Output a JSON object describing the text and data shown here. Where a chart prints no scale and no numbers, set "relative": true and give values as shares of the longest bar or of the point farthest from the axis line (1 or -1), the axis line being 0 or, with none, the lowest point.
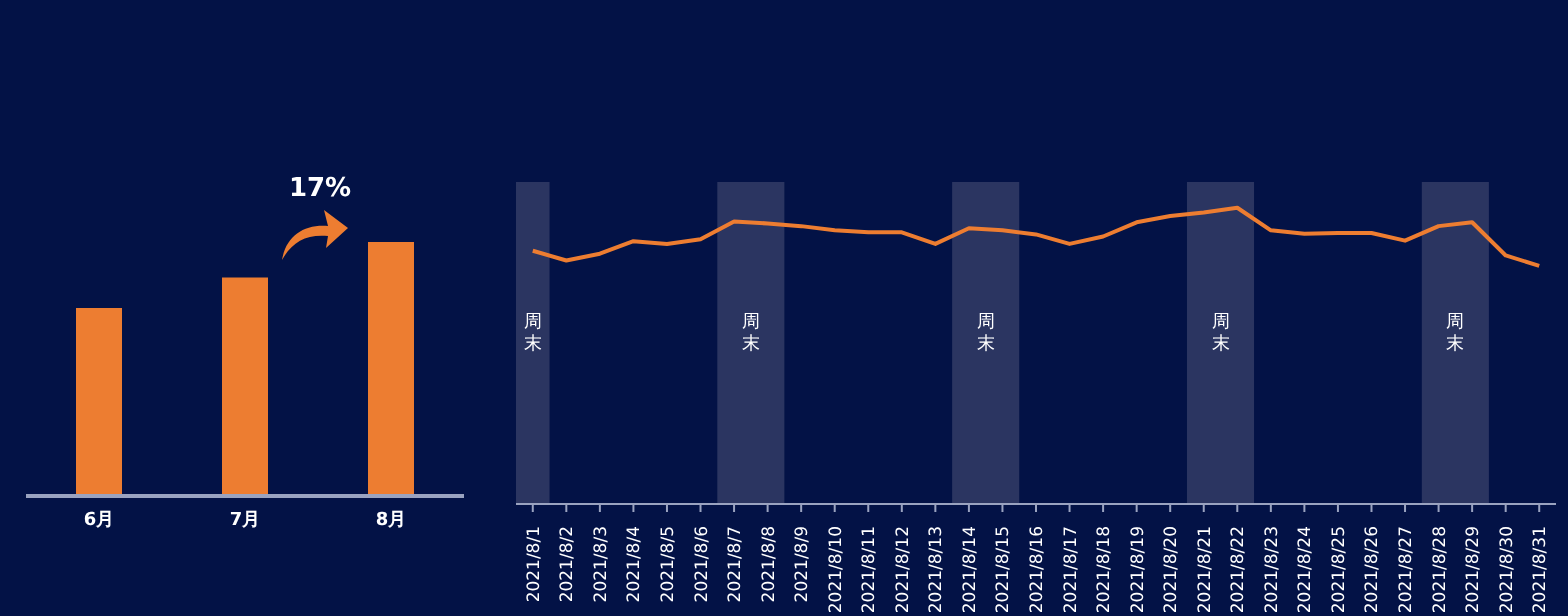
{
  "chart_data": [
    {
      "type": "bar",
      "categories": [
        "6月",
        "7月",
        "8月"
      ],
      "values": [
        0.74,
        0.86,
        1
      ],
      "color": "#ed7d31",
      "relative": true,
      "annotations": [
        "17%"
      ]
    },
    {
      "type": "line",
      "categories": [
        "2021/8/1",
        "2021/8/2",
        "2021/8/3",
        "2021/8/4",
        "2021/8/5",
        "2021/8/6",
        "2021/8/7",
        "2021/8/8",
        "2021/8/9",
        "2021/8/10",
        "2021/8/11",
        "2021/8/12",
        "2021/8/13",
        "2021/8/14",
        "2021/8/15",
        "2021/8/16",
        "2021/8/17",
        "2021/8/18",
        "2021/8/19",
        "2021/8/20",
        "2021/8/21",
        "2021/8/22",
        "2021/8/23",
        "2021/8/24",
        "2021/8/25",
        "2021/8/26",
        "2021/8/27",
        "2021/8/28",
        "2021/8/29",
        "2021/8/30",
        "2021/8/31"
      ],
      "values": [
        0.855,
        0.822,
        0.845,
        0.887,
        0.878,
        0.894,
        0.954,
        0.947,
        0.938,
        0.924,
        0.917,
        0.917,
        0.878,
        0.931,
        0.924,
        0.91,
        0.878,
        0.903,
        0.951,
        0.972,
        0.984,
        1,
        0.924,
        0.912,
        0.915,
        0.915,
        0.889,
        0.938,
        0.951,
        0.839,
        0.804
      ],
      "color": "#ed7d31",
      "relative": true,
      "marker": "none",
      "bands": [
        {
          "axis": "x",
          "from": "2021/8/1",
          "to": "2021/8/1",
          "label": "周末",
          "color": "#2b3561"
        },
        {
          "axis": "x",
          "from": "2021/8/7",
          "to": "2021/8/8",
          "label": "周末",
          "color": "#2b3561"
        },
        {
          "axis": "x",
          "from": "2021/8/14",
          "to": "2021/8/15",
          "label": "周末",
          "color": "#2b3561"
        },
        {
          "axis": "x",
          "from": "2021/8/21",
          "to": "2021/8/22",
          "label": "周末",
          "color": "#2b3561"
        },
        {
          "axis": "x",
          "from": "2021/8/28",
          "to": "2021/8/29",
          "label": "周末",
          "color": "#2b3561"
        }
      ]
    }
  ]
}
